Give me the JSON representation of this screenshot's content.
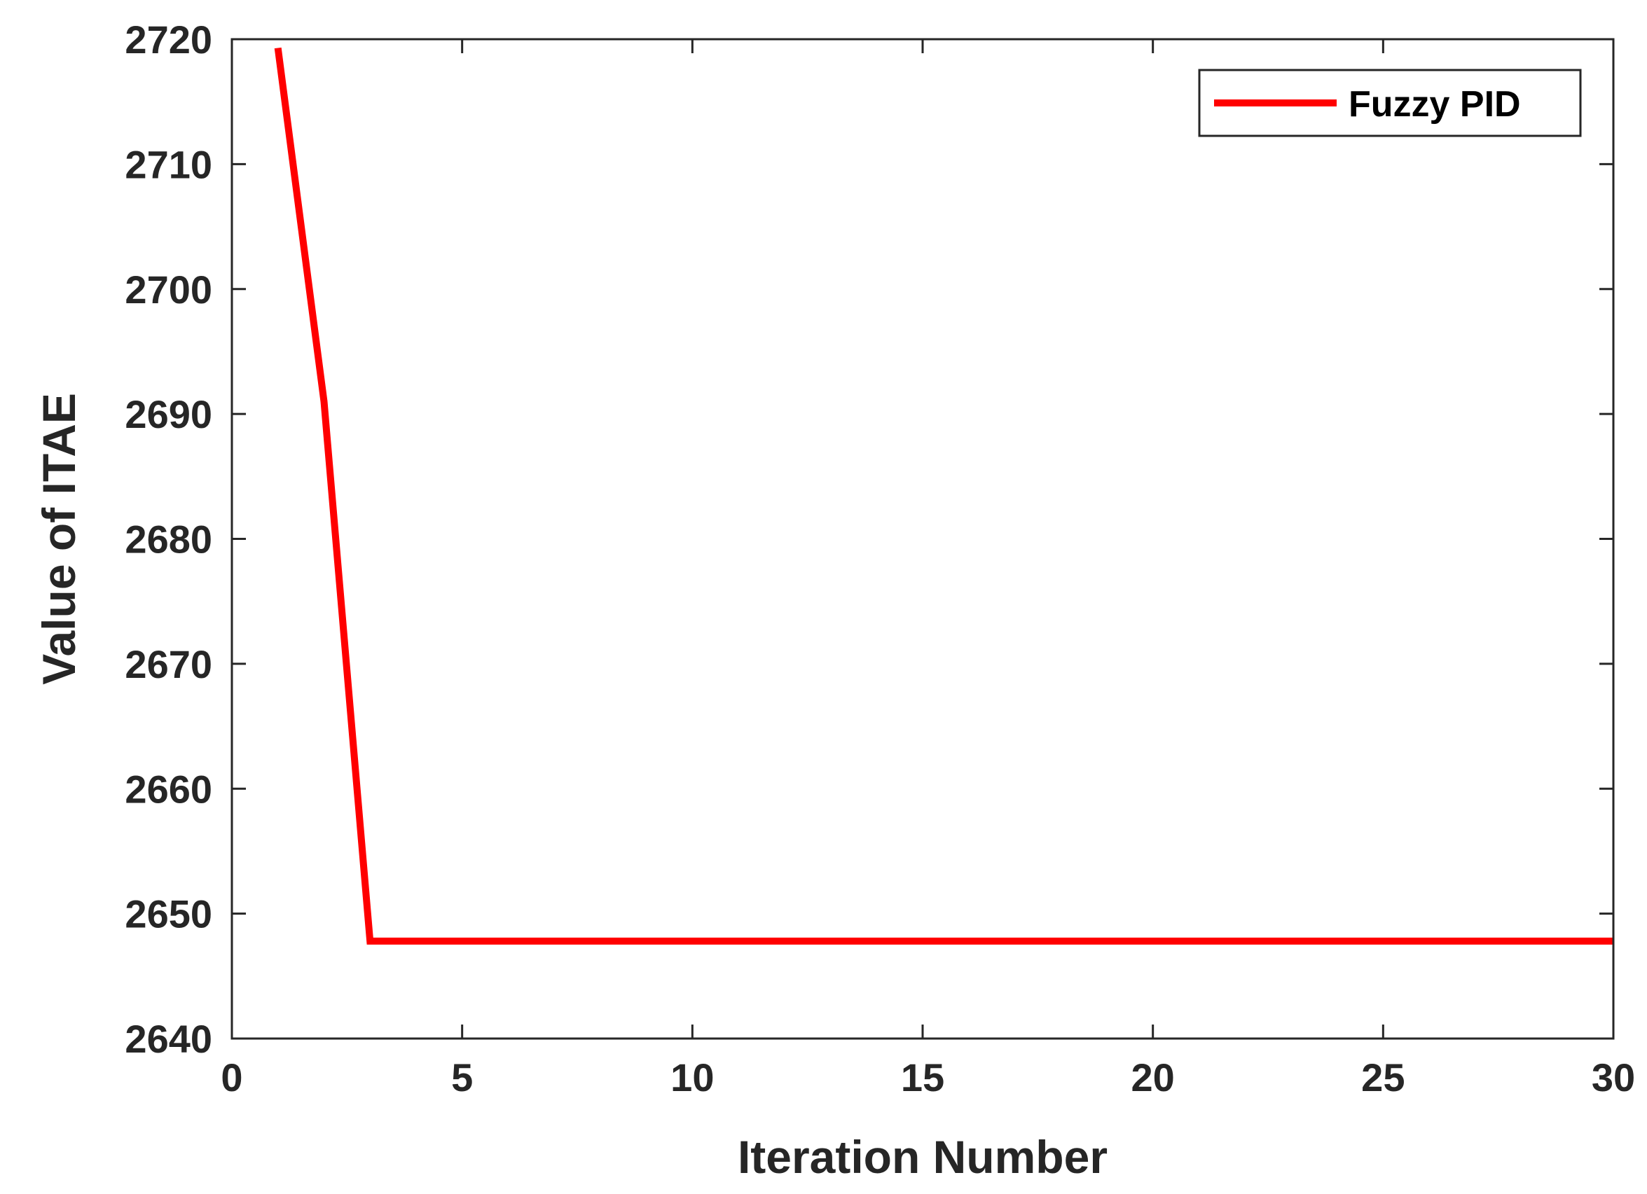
{
  "chart_data": {
    "type": "line",
    "title": "",
    "xlabel": "Iteration Number",
    "ylabel": "Value of ITAE",
    "xlim": [
      0,
      30
    ],
    "ylim": [
      2640,
      2720
    ],
    "xticks": [
      0,
      5,
      10,
      15,
      20,
      25,
      30
    ],
    "yticks": [
      2640,
      2650,
      2660,
      2670,
      2680,
      2690,
      2700,
      2710,
      2720
    ],
    "grid": false,
    "box": true,
    "legend": {
      "placement": "top-right"
    },
    "series": [
      {
        "name": "Fuzzy PID",
        "color": "#ff0000",
        "x": [
          1,
          2,
          3,
          4,
          5,
          6,
          7,
          8,
          9,
          10,
          11,
          12,
          13,
          14,
          15,
          16,
          17,
          18,
          19,
          20,
          21,
          22,
          23,
          24,
          25,
          26,
          27,
          28,
          29,
          30
        ],
        "y": [
          2719.3,
          2691.0,
          2647.8,
          2647.8,
          2647.8,
          2647.8,
          2647.8,
          2647.8,
          2647.8,
          2647.8,
          2647.8,
          2647.8,
          2647.8,
          2647.8,
          2647.8,
          2647.8,
          2647.8,
          2647.8,
          2647.8,
          2647.8,
          2647.8,
          2647.8,
          2647.8,
          2647.8,
          2647.8,
          2647.8,
          2647.8,
          2647.8,
          2647.8,
          2647.8
        ]
      }
    ]
  }
}
